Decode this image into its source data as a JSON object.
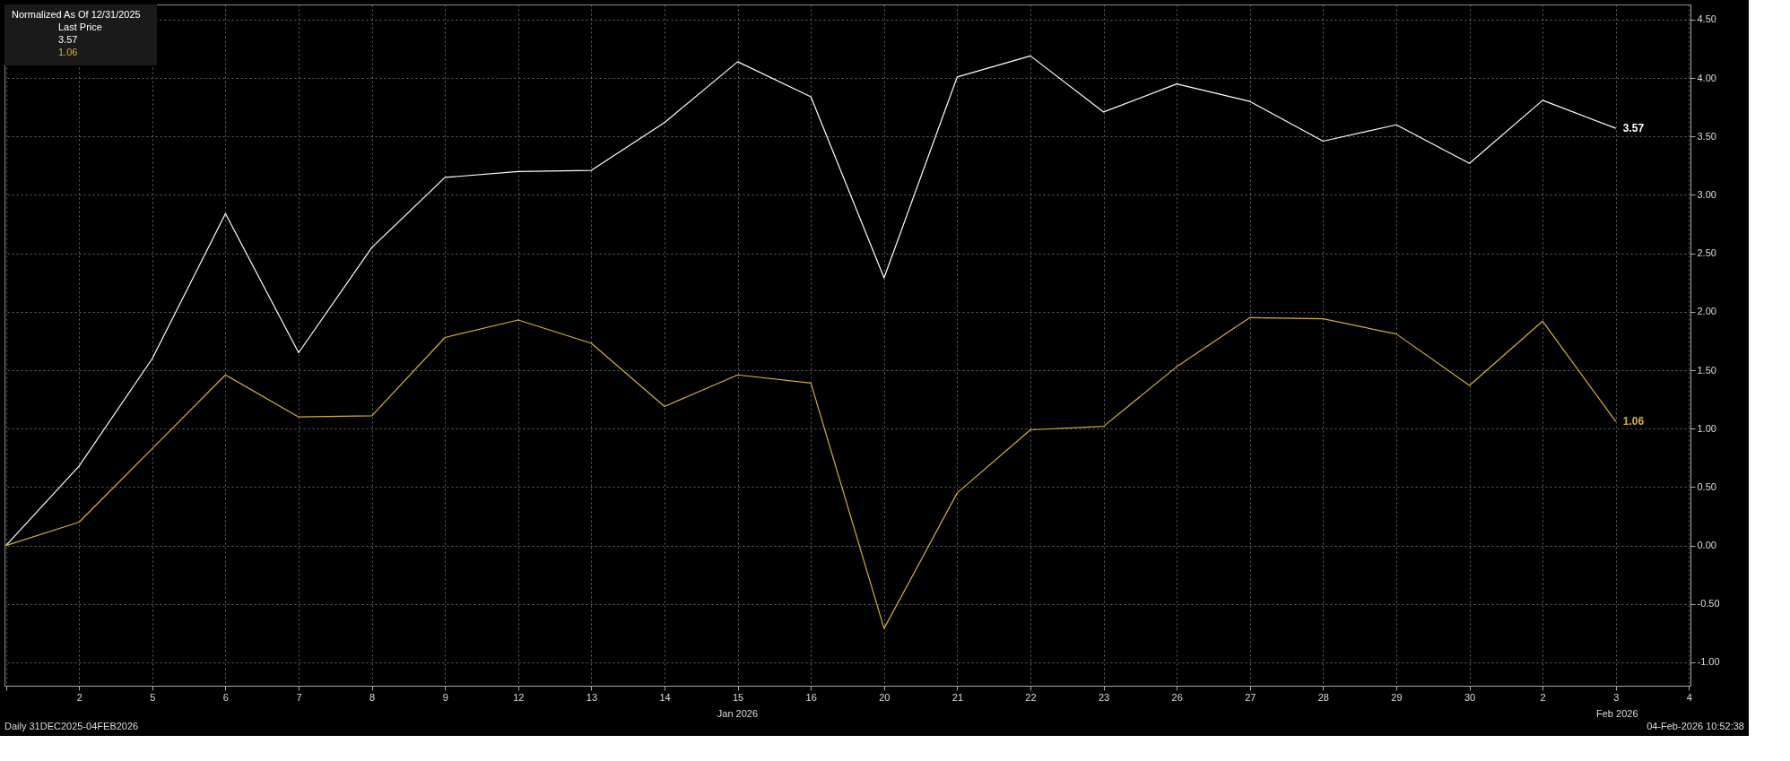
{
  "chart_data": {
    "type": "line",
    "legend_title": "Normalized As Of 12/31/2025",
    "categories": [
      null,
      "2",
      "5",
      "6",
      "7",
      "8",
      "9",
      "12",
      "13",
      "14",
      "15",
      "16",
      "20",
      "21",
      "22",
      "23",
      "26",
      "27",
      "28",
      "29",
      "30",
      "2",
      "3",
      "4"
    ],
    "series": [
      {
        "color": "#ffffff",
        "values": [
          0,
          0.68,
          1.6,
          2.84,
          1.65,
          2.55,
          3.15,
          3.2,
          3.21,
          3.62,
          4.14,
          3.84,
          2.29,
          4.01,
          4.19,
          3.71,
          3.95,
          3.8,
          3.46,
          3.6,
          3.27,
          3.81,
          3.57,
          null
        ],
        "value_labels": [
          null,
          null,
          null,
          null,
          null,
          null,
          null,
          null,
          null,
          null,
          null,
          null,
          null,
          null,
          null,
          null,
          null,
          null,
          null,
          null,
          null,
          null,
          "3.57",
          null
        ]
      },
      {
        "color": "#d4b03a",
        "values": [
          0,
          0.2,
          0.83,
          1.46,
          1.1,
          1.11,
          1.78,
          1.93,
          1.73,
          1.19,
          1.46,
          1.39,
          -0.71,
          0.45,
          0.99,
          1.02,
          1.53,
          1.95,
          1.94,
          1.81,
          1.37,
          1.92,
          1.06,
          null
        ],
        "value_labels": [
          null,
          null,
          null,
          null,
          null,
          null,
          null,
          null,
          null,
          null,
          null,
          null,
          null,
          null,
          null,
          null,
          null,
          null,
          null,
          null,
          null,
          null,
          "1.06",
          null
        ]
      }
    ],
    "ylim": [
      -1.2,
      4.63
    ],
    "yticks": [
      {
        "value": -1,
        "label": "-1.00"
      },
      {
        "value": -0.5,
        "label": "-0.50"
      },
      {
        "value": 0,
        "label": "0.00"
      },
      {
        "value": 0.5,
        "label": "0.50"
      },
      {
        "value": 1,
        "label": "1.00"
      },
      {
        "value": 1.5,
        "label": "1.50"
      },
      {
        "value": 2,
        "label": "2.00"
      },
      {
        "value": 2.5,
        "label": "2.50"
      },
      {
        "value": 3,
        "label": "3.00"
      },
      {
        "value": 3.5,
        "label": "3.50"
      },
      {
        "value": 4,
        "label": "4.00"
      },
      {
        "value": 4.5,
        "label": "4.50"
      }
    ],
    "grid": true,
    "marker": "none",
    "line_style": "solid",
    "annotations": [
      "Last Price",
      "Jan 2026",
      "Feb 2026",
      "Daily 31DEC2025-04FEB2026",
      "04-Feb-2026 10:52:38"
    ]
  }
}
